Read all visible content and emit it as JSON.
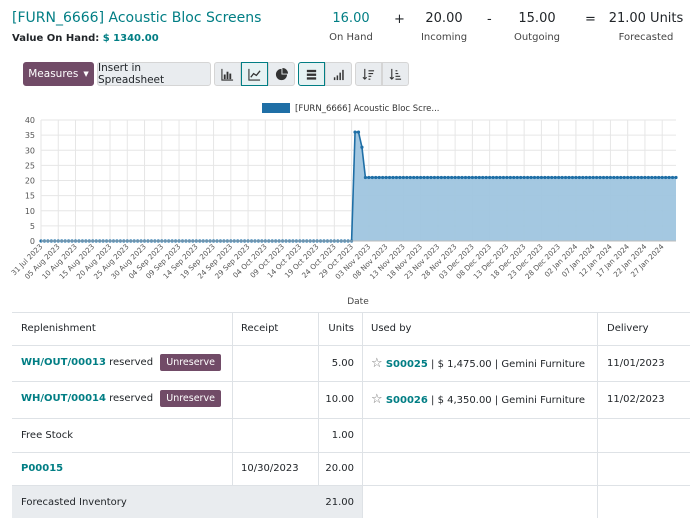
{
  "header": {
    "title": "[FURN_6666] Acoustic Bloc Screens",
    "value_label": "Value On Hand:",
    "value_amount": "$ 1340.00"
  },
  "stats": {
    "on_hand": {
      "value": "16.00",
      "label": "On Hand"
    },
    "op_plus": "+",
    "incoming": {
      "value": "20.00",
      "label": "Incoming"
    },
    "op_minus": "-",
    "outgoing": {
      "value": "15.00",
      "label": "Outgoing"
    },
    "op_equal": "=",
    "forecasted": {
      "value": "21.00 Units",
      "label": "Forecasted"
    }
  },
  "toolbar": {
    "measures_label": "Measures",
    "spreadsheet_label": "Insert in Spreadsheet",
    "icons": [
      "bar-chart-icon",
      "line-chart-icon",
      "pie-chart-icon",
      "stacked-icon",
      "cumulative-icon",
      "sort-descending-icon",
      "sort-ascending-icon"
    ]
  },
  "chart_data": {
    "type": "area",
    "title": "",
    "legend": "[FURN_6666] Acoustic Bloc Scre...",
    "legend_placement": "top-center",
    "xlabel": "Date",
    "ylabel": "",
    "ylim": [
      0,
      40
    ],
    "yticks": [
      0,
      5,
      10,
      15,
      20,
      25,
      30,
      35,
      40
    ],
    "grid": true,
    "color": "#1f6fa6",
    "fill": "#9fc5df",
    "xticks": [
      "31 Jul 2023",
      "05 Aug 2023",
      "10 Aug 2023",
      "15 Aug 2023",
      "20 Aug 2023",
      "25 Aug 2023",
      "30 Aug 2023",
      "04 Sep 2023",
      "09 Sep 2023",
      "14 Sep 2023",
      "19 Sep 2023",
      "24 Sep 2023",
      "29 Sep 2023",
      "04 Oct 2023",
      "09 Oct 2023",
      "14 Oct 2023",
      "19 Oct 2023",
      "24 Oct 2023",
      "29 Oct 2023",
      "03 Nov 2023",
      "08 Nov 2023",
      "13 Nov 2023",
      "18 Nov 2023",
      "23 Nov 2023",
      "28 Nov 2023",
      "03 Dec 2023",
      "08 Dec 2023",
      "13 Dec 2023",
      "18 Dec 2023",
      "23 Dec 2023",
      "28 Dec 2023",
      "02 Jan 2024",
      "07 Jan 2024",
      "12 Jan 2024",
      "17 Jan 2024",
      "22 Jan 2024",
      "27 Jan 2024"
    ],
    "series": [
      {
        "name": "[FURN_6666] Acoustic Bloc Screens",
        "segments": [
          {
            "from": "31 Jul 2023",
            "to": "29 Oct 2023",
            "value": 0
          },
          {
            "date": "30 Oct 2023",
            "value": 36
          },
          {
            "date": "31 Oct 2023",
            "value": 36
          },
          {
            "date": "01 Nov 2023",
            "value": 31
          },
          {
            "from": "02 Nov 2023",
            "to": "31 Jan 2024",
            "value": 21
          }
        ]
      }
    ]
  },
  "table": {
    "headers": {
      "replenishment": "Replenishment",
      "receipt": "Receipt",
      "units": "Units",
      "used_by": "Used by",
      "delivery": "Delivery"
    },
    "rows": [
      {
        "ref": "WH/OUT/00013",
        "reserved": "reserved",
        "button": "Unreserve",
        "receipt": "",
        "units": "5.00",
        "order": "S00025",
        "amount": "$ 1,475.00",
        "partner": "Gemini Furniture",
        "sep": "|",
        "delivery": "11/01/2023"
      },
      {
        "ref": "WH/OUT/00014",
        "reserved": "reserved",
        "button": "Unreserve",
        "receipt": "",
        "units": "10.00",
        "order": "S00026",
        "amount": "$ 4,350.00",
        "partner": "Gemini Furniture",
        "sep": "|",
        "delivery": "11/02/2023"
      },
      {
        "ref": "Free Stock",
        "receipt": "",
        "units": "1.00"
      },
      {
        "ref": "P00015",
        "receipt": "10/30/2023",
        "units": "20.00"
      }
    ],
    "footer": {
      "label": "Forecasted Inventory",
      "units": "21.00"
    }
  }
}
